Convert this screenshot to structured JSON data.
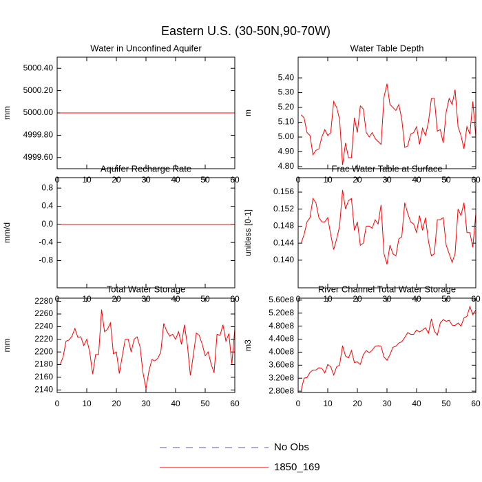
{
  "title": "Eastern U.S. (30-50N,90-70W)",
  "legend": [
    {
      "name": "No Obs",
      "color": "#5a5ab4",
      "dash": true
    },
    {
      "name": "1850_169",
      "color": "#ff0000",
      "dash": false
    }
  ],
  "chart_data": [
    {
      "type": "line",
      "title": "Water in Unconfined Aquifer",
      "ylabel": "mm",
      "color": "#ff0000",
      "x": [
        1,
        2,
        3,
        4,
        5,
        6,
        7,
        8,
        9,
        10,
        11,
        12,
        13,
        14,
        15,
        16,
        17,
        18,
        19,
        20,
        21,
        22,
        23,
        24,
        25,
        26,
        27,
        28,
        29,
        30,
        31,
        32,
        33,
        34,
        35,
        36,
        37,
        38,
        39,
        40,
        41,
        42,
        43,
        44,
        45,
        46,
        47,
        48,
        49,
        50,
        51,
        52,
        53,
        54,
        55,
        56,
        57,
        58,
        59,
        60
      ],
      "values": [
        5000,
        5000,
        5000,
        5000,
        5000,
        5000,
        5000,
        5000,
        5000,
        5000,
        5000,
        5000,
        5000,
        5000,
        5000,
        5000,
        5000,
        5000,
        5000,
        5000,
        5000,
        5000,
        5000,
        5000,
        5000,
        5000,
        5000,
        5000,
        5000,
        5000,
        5000,
        5000,
        5000,
        5000,
        5000,
        5000,
        5000,
        5000,
        5000,
        5000,
        5000,
        5000,
        5000,
        5000,
        5000,
        5000,
        5000,
        5000,
        5000,
        5000,
        5000,
        5000,
        5000,
        5000,
        5000,
        5000,
        5000,
        5000,
        5000,
        5000
      ],
      "xlim": [
        0,
        60
      ],
      "xticks": [
        0,
        10,
        20,
        30,
        40,
        50,
        60
      ],
      "ylim": [
        4999.5,
        5000.5
      ],
      "yticks": [
        {
          "value": 4999.6,
          "label": "4999.60"
        },
        {
          "value": 4999.8,
          "label": "4999.80"
        },
        {
          "value": 5000,
          "label": "5000.00"
        },
        {
          "value": 5000.2,
          "label": "5000.20"
        },
        {
          "value": 5000.4,
          "label": "5000.40"
        }
      ]
    },
    {
      "type": "line",
      "title": "Water Table Depth",
      "ylabel": "m",
      "color": "#ff0000",
      "x": [
        1,
        2,
        3,
        4,
        5,
        6,
        7,
        8,
        9,
        10,
        11,
        12,
        13,
        14,
        15,
        16,
        17,
        18,
        19,
        20,
        21,
        22,
        23,
        24,
        25,
        26,
        27,
        28,
        29,
        30,
        31,
        32,
        33,
        34,
        35,
        36,
        37,
        38,
        39,
        40,
        41,
        42,
        43,
        44,
        45,
        46,
        47,
        48,
        49,
        50,
        51,
        52,
        53,
        54,
        55,
        56,
        57,
        58,
        59,
        60
      ],
      "values": [
        5.15,
        5.13,
        5.03,
        5.01,
        4.88,
        4.91,
        4.92,
        5.0,
        5.05,
        5.01,
        5.03,
        5.24,
        5.2,
        5.12,
        4.81,
        4.96,
        4.86,
        4.86,
        5.13,
        5.03,
        5.21,
        5.19,
        5.03,
        5.0,
        5.03,
        4.99,
        4.97,
        4.95,
        5.27,
        5.36,
        5.22,
        5.2,
        5.18,
        5.22,
        5.12,
        4.93,
        4.94,
        5.02,
        5.03,
        5.07,
        4.95,
        5.06,
        5.01,
        5.1,
        5.26,
        5.26,
        5.04,
        5.05,
        4.96,
        5.17,
        5.26,
        5.22,
        5.32,
        5.07,
        5.01,
        4.92,
        5.07,
        5.02,
        5.24,
        5.0
      ],
      "xlim": [
        0,
        60
      ],
      "xticks": [
        0,
        10,
        20,
        30,
        40,
        50,
        60
      ],
      "ylim": [
        4.786,
        5.54
      ],
      "yticks": [
        {
          "value": 4.8,
          "label": "4.80"
        },
        {
          "value": 4.9,
          "label": "4.90"
        },
        {
          "value": 5.0,
          "label": "5.00"
        },
        {
          "value": 5.1,
          "label": "5.10"
        },
        {
          "value": 5.2,
          "label": "5.20"
        },
        {
          "value": 5.3,
          "label": "5.30"
        },
        {
          "value": 5.4,
          "label": "5.40"
        }
      ]
    },
    {
      "type": "line",
      "title": "Aquifer Recharge Rate",
      "ylabel": "mm/d",
      "color": "#ff0000",
      "x": [
        1,
        2,
        3,
        4,
        5,
        6,
        7,
        8,
        9,
        10,
        11,
        12,
        13,
        14,
        15,
        16,
        17,
        18,
        19,
        20,
        21,
        22,
        23,
        24,
        25,
        26,
        27,
        28,
        29,
        30,
        31,
        32,
        33,
        34,
        35,
        36,
        37,
        38,
        39,
        40,
        41,
        42,
        43,
        44,
        45,
        46,
        47,
        48,
        49,
        50,
        51,
        52,
        53,
        54,
        55,
        56,
        57,
        58,
        59,
        60
      ],
      "values": [
        0,
        0,
        0,
        0,
        0,
        0,
        0,
        0,
        0,
        0,
        0,
        0,
        0,
        0,
        0,
        0,
        0,
        0,
        0,
        0,
        0,
        0,
        0,
        0,
        0,
        0,
        0,
        0,
        0,
        0,
        0,
        0,
        0,
        0,
        0,
        0,
        0,
        0,
        0,
        0,
        0,
        0,
        0,
        0,
        0,
        0,
        0,
        0,
        0,
        0,
        0,
        0,
        0,
        0,
        0,
        0,
        0,
        0,
        0,
        0
      ],
      "xlim": [
        0,
        60
      ],
      "xticks": [
        0,
        10,
        20,
        30,
        40,
        50,
        60
      ],
      "ylim": [
        -1.4,
        1.03
      ],
      "yticks": [
        -0.8,
        -0.4,
        {
          "value": 0,
          "label": "0.0"
        },
        0.4,
        0.8
      ]
    },
    {
      "type": "line",
      "title": "Frac Water Table at Surface",
      "ylabel": "unitless [0-1]",
      "color": "#ff0000",
      "x": [
        1,
        2,
        3,
        4,
        5,
        6,
        7,
        8,
        9,
        10,
        11,
        12,
        13,
        14,
        15,
        16,
        17,
        18,
        19,
        20,
        21,
        22,
        23,
        24,
        25,
        26,
        27,
        28,
        29,
        30,
        31,
        32,
        33,
        34,
        35,
        36,
        37,
        38,
        39,
        40,
        41,
        42,
        43,
        44,
        45,
        46,
        47,
        48,
        49,
        50,
        51,
        52,
        53,
        54,
        55,
        56,
        57,
        58,
        59,
        60
      ],
      "values": [
        0.144,
        0.146,
        0.149,
        0.15,
        0.1545,
        0.1535,
        0.15,
        0.149,
        0.149,
        0.15,
        0.146,
        0.1425,
        0.145,
        0.148,
        0.1565,
        0.152,
        0.154,
        0.1545,
        0.147,
        0.149,
        0.1435,
        0.144,
        0.148,
        0.148,
        0.1475,
        0.1495,
        0.1485,
        0.153,
        0.1415,
        0.139,
        0.1435,
        0.1415,
        0.141,
        0.145,
        0.1455,
        0.1535,
        0.151,
        0.149,
        0.1485,
        0.1465,
        0.1505,
        0.147,
        0.15,
        0.1445,
        0.141,
        0.1415,
        0.1495,
        0.1495,
        0.15,
        0.1435,
        0.1415,
        0.1395,
        0.1415,
        0.152,
        0.1505,
        0.1535,
        0.1465,
        0.1465,
        0.143,
        0.151
      ],
      "xlim": [
        0,
        60
      ],
      "xticks": [
        0,
        10,
        20,
        30,
        40,
        50,
        60
      ],
      "ylim": [
        0.1335,
        0.1594
      ],
      "yticks": [
        {
          "value": 0.14,
          "label": "0.140"
        },
        0.144,
        0.148,
        0.152,
        0.156
      ]
    },
    {
      "type": "line",
      "title": "Total Water Storage",
      "ylabel": "mm",
      "color": "#ff0000",
      "x": [
        1,
        2,
        3,
        4,
        5,
        6,
        7,
        8,
        9,
        10,
        11,
        12,
        13,
        14,
        15,
        16,
        17,
        18,
        19,
        20,
        21,
        22,
        23,
        24,
        25,
        26,
        27,
        28,
        29,
        30,
        31,
        32,
        33,
        34,
        35,
        36,
        37,
        38,
        39,
        40,
        41,
        42,
        43,
        44,
        45,
        46,
        47,
        48,
        49,
        50,
        51,
        52,
        53,
        54,
        55,
        56,
        57,
        58,
        59,
        60
      ],
      "values": [
        2180,
        2192,
        2217,
        2219,
        2225,
        2237,
        2223,
        2224,
        2210,
        2220,
        2200,
        2165,
        2196,
        2196,
        2267,
        2232,
        2236,
        2246,
        2197,
        2200,
        2166,
        2194,
        2220,
        2220,
        2200,
        2220,
        2224,
        2208,
        2167,
        2142,
        2170,
        2188,
        2186,
        2190,
        2200,
        2245,
        2233,
        2225,
        2228,
        2220,
        2232,
        2212,
        2243,
        2210,
        2163,
        2195,
        2230,
        2226,
        2212,
        2194,
        2200,
        2181,
        2167,
        2228,
        2226,
        2243,
        2217,
        2229,
        2181,
        2237
      ],
      "xlim": [
        0,
        60
      ],
      "xticks": [
        0,
        10,
        20,
        30,
        40,
        50,
        60
      ],
      "ylim": [
        2136,
        2285
      ],
      "yticks": [
        2140,
        2160,
        2180,
        2200,
        2220,
        2240,
        2260,
        2280
      ]
    },
    {
      "type": "line",
      "title": "River Channel Total Water Storage",
      "ylabel": "m3",
      "color": "#ff0000",
      "x": [
        1,
        2,
        3,
        4,
        5,
        6,
        7,
        8,
        9,
        10,
        11,
        12,
        13,
        14,
        15,
        16,
        17,
        18,
        19,
        20,
        21,
        22,
        23,
        24,
        25,
        26,
        27,
        28,
        29,
        30,
        31,
        32,
        33,
        34,
        35,
        36,
        37,
        38,
        39,
        40,
        41,
        42,
        43,
        44,
        45,
        46,
        47,
        48,
        49,
        50,
        51,
        52,
        53,
        54,
        55,
        56,
        57,
        58,
        59,
        60
      ],
      "values": [
        282000000,
        320000000,
        322000000,
        338000000,
        345000000,
        345000000,
        352000000,
        350000000,
        336000000,
        362000000,
        355000000,
        330000000,
        355000000,
        360000000,
        420000000,
        388000000,
        382000000,
        405000000,
        368000000,
        370000000,
        362000000,
        392000000,
        405000000,
        398000000,
        406000000,
        418000000,
        420000000,
        418000000,
        385000000,
        375000000,
        392000000,
        415000000,
        418000000,
        428000000,
        432000000,
        445000000,
        460000000,
        455000000,
        455000000,
        468000000,
        462000000,
        468000000,
        475000000,
        458000000,
        502000000,
        465000000,
        452000000,
        490000000,
        500000000,
        495000000,
        498000000,
        483000000,
        482000000,
        490000000,
        480000000,
        505000000,
        510000000,
        540000000,
        515000000,
        530000000
      ],
      "xlim": [
        0,
        60
      ],
      "xticks": [
        0,
        10,
        20,
        30,
        40,
        50,
        60
      ],
      "ylim": [
        276000000,
        566000000
      ],
      "yticks": [
        {
          "value": 280000000,
          "label": "2.80e8"
        },
        {
          "value": 320000000,
          "label": "3.20e8"
        },
        {
          "value": 360000000,
          "label": "3.60e8"
        },
        {
          "value": 400000000,
          "label": "4.00e8"
        },
        {
          "value": 440000000,
          "label": "4.40e8"
        },
        {
          "value": 480000000,
          "label": "4.80e8"
        },
        {
          "value": 520000000,
          "label": "5.20e8"
        },
        {
          "value": 560000000,
          "label": "5.60e8"
        }
      ]
    }
  ]
}
